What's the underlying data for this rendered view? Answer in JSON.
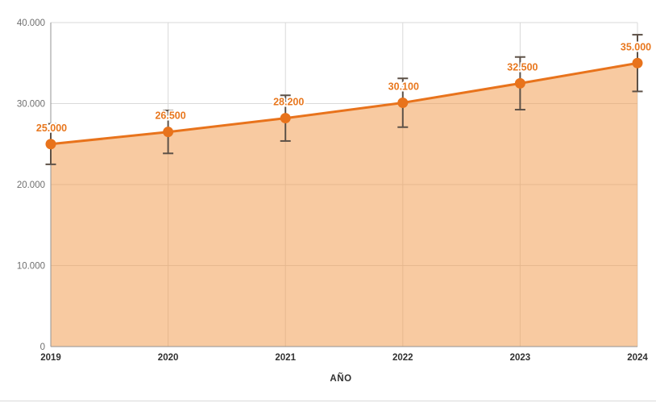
{
  "chart_data": {
    "type": "area",
    "title": "",
    "xlabel": "AÑO",
    "ylabel": "",
    "categories": [
      "2019",
      "2020",
      "2021",
      "2022",
      "2023",
      "2024"
    ],
    "values": [
      25000,
      26500,
      28200,
      30100,
      32500,
      35000
    ],
    "value_labels": [
      "25.000",
      "26.500",
      "28.200",
      "30.100",
      "32.500",
      "35.000"
    ],
    "error_bars": {
      "type": "percent",
      "value": 10
    },
    "y_ticks": [
      0,
      10000,
      20000,
      30000,
      40000
    ],
    "y_tick_labels": [
      "0",
      "10.000",
      "20.000",
      "30.000",
      "40.000"
    ],
    "ylim": [
      0,
      40000
    ],
    "grid": true,
    "legend": "none",
    "colors": {
      "line": "#e8731c",
      "marker": "#e8731c",
      "fill": "rgba(242,153,74,0.52)",
      "data_label": "#e8771e",
      "error_bar": "#5d5147",
      "grid": "#d9d9d9",
      "axis": "#939393",
      "y_tick_text": "#6f6f6f",
      "x_tick_text": "#303030"
    }
  }
}
